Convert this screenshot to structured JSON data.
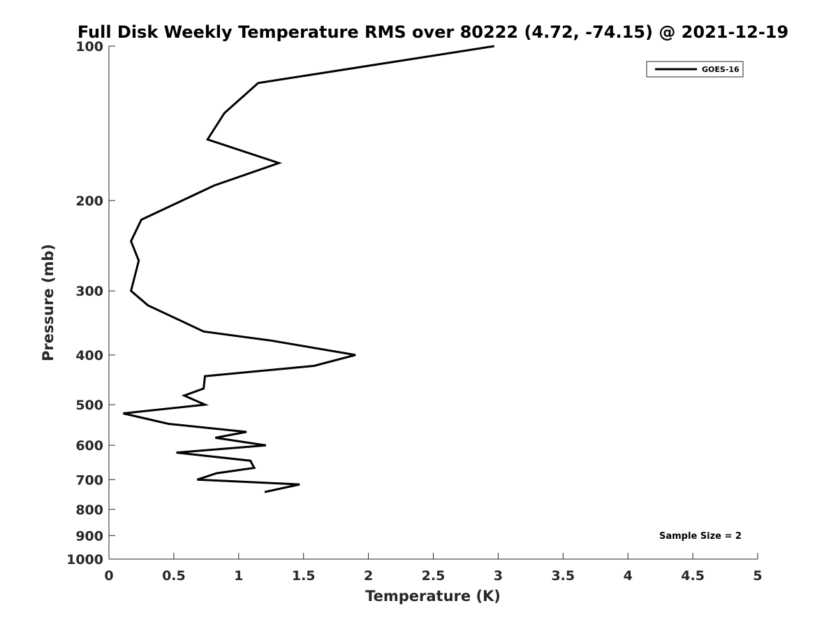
{
  "chart_data": {
    "type": "line",
    "title": "Full Disk Weekly Temperature RMS over 80222 (4.72, -74.15) @ 2021-12-19",
    "xlabel": "Temperature (K)",
    "ylabel": "Pressure (mb)",
    "xlim": [
      0,
      5
    ],
    "ylim": [
      100,
      1000
    ],
    "yscale": "log",
    "y_reversed": true,
    "xticks": [
      0,
      0.5,
      1,
      1.5,
      2,
      2.5,
      3,
      3.5,
      4,
      4.5,
      5
    ],
    "xtick_labels": [
      "0",
      "0.5",
      "1",
      "1.5",
      "2",
      "2.5",
      "3",
      "3.5",
      "4",
      "4.5",
      "5"
    ],
    "yticks": [
      100,
      200,
      300,
      400,
      500,
      600,
      700,
      800,
      900,
      1000
    ],
    "ytick_labels": [
      "100",
      "200",
      "300",
      "400",
      "500",
      "600",
      "700",
      "800",
      "900",
      "1000"
    ],
    "grid": false,
    "legend_position": "top-right",
    "annotation": "Sample Size = 2",
    "series": [
      {
        "name": "GOES-16",
        "color": "#000000",
        "points": [
          {
            "x": 2.97,
            "y": 100
          },
          {
            "x": 1.15,
            "y": 118
          },
          {
            "x": 0.89,
            "y": 135
          },
          {
            "x": 0.76,
            "y": 152
          },
          {
            "x": 1.31,
            "y": 169
          },
          {
            "x": 0.81,
            "y": 187
          },
          {
            "x": 0.25,
            "y": 218
          },
          {
            "x": 0.17,
            "y": 240
          },
          {
            "x": 0.23,
            "y": 262
          },
          {
            "x": 0.17,
            "y": 300
          },
          {
            "x": 0.3,
            "y": 320
          },
          {
            "x": 0.73,
            "y": 360
          },
          {
            "x": 1.25,
            "y": 375
          },
          {
            "x": 1.9,
            "y": 400
          },
          {
            "x": 1.58,
            "y": 420
          },
          {
            "x": 0.74,
            "y": 440
          },
          {
            "x": 0.73,
            "y": 465
          },
          {
            "x": 0.58,
            "y": 480
          },
          {
            "x": 0.74,
            "y": 500
          },
          {
            "x": 0.11,
            "y": 520
          },
          {
            "x": 0.46,
            "y": 545
          },
          {
            "x": 1.06,
            "y": 565
          },
          {
            "x": 0.82,
            "y": 580
          },
          {
            "x": 1.21,
            "y": 600
          },
          {
            "x": 0.52,
            "y": 620
          },
          {
            "x": 1.09,
            "y": 643
          },
          {
            "x": 1.12,
            "y": 664
          },
          {
            "x": 0.83,
            "y": 680
          },
          {
            "x": 0.68,
            "y": 700
          },
          {
            "x": 1.47,
            "y": 715
          },
          {
            "x": 1.2,
            "y": 740
          }
        ]
      }
    ]
  }
}
